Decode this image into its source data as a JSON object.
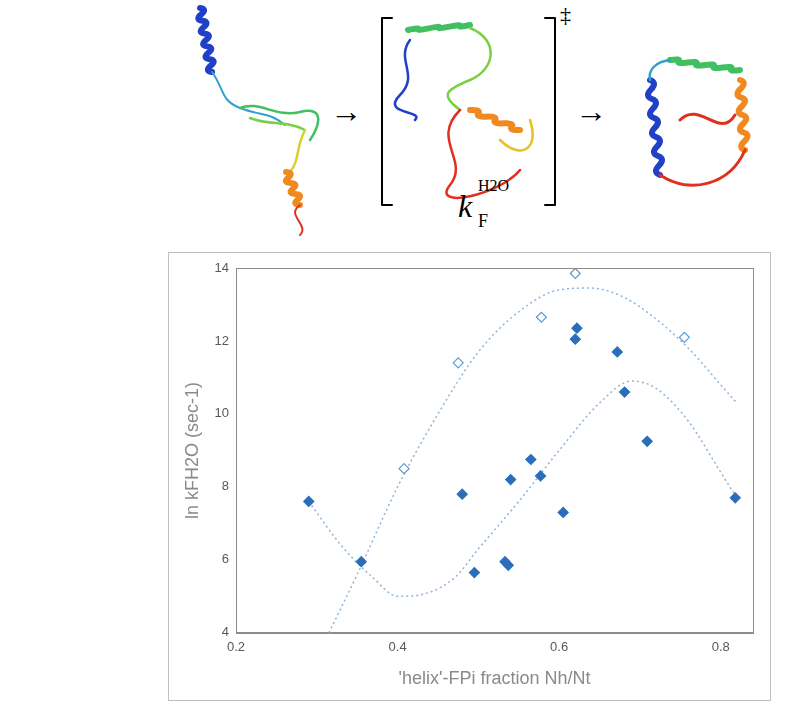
{
  "chart_data": {
    "type": "scatter",
    "scheme": {
      "arrows": [
        "→",
        "→"
      ],
      "transition_state_mark": "‡",
      "rate_symbol": {
        "base": "k",
        "subscript": "F",
        "superscript": "H2O"
      }
    },
    "x_label": "'helix'-FPi fraction Nh/Nt",
    "y_label": "ln kFH2O (sec-1)",
    "xlim": [
      0.2,
      0.84
    ],
    "xticks": [
      0.2,
      0.4,
      0.6,
      0.8
    ],
    "ylim": [
      4,
      14
    ],
    "yticks": [
      4,
      6,
      8,
      10,
      12,
      14
    ],
    "grid": false,
    "series": [
      {
        "color": "#2a6ebb",
        "marker": "diamond",
        "line_style": "none",
        "x": [
          0.29,
          0.355,
          0.48,
          0.495,
          0.533,
          0.537,
          0.54,
          0.565,
          0.577,
          0.605,
          0.62,
          0.622,
          0.672,
          0.681,
          0.709,
          0.818
        ],
        "values": [
          7.6,
          5.95,
          7.8,
          5.65,
          5.95,
          5.85,
          8.2,
          8.75,
          8.3,
          7.3,
          12.05,
          12.35,
          11.7,
          10.6,
          9.25,
          7.7
        ]
      },
      {
        "color": "#5b9bd5",
        "marker": "open_diamond",
        "line_style": "none",
        "x": [
          0.408,
          0.475,
          0.578,
          0.62,
          0.755
        ],
        "values": [
          8.5,
          11.4,
          12.65,
          13.85,
          12.1
        ]
      },
      {
        "color": "#8fb4d9",
        "marker": "none",
        "line_style": "dotted",
        "x": [
          0.29,
          0.33,
          0.37,
          0.4,
          0.43,
          0.47,
          0.5,
          0.55,
          0.6,
          0.65,
          0.69,
          0.72,
          0.76,
          0.8,
          0.82
        ],
        "values": [
          7.6,
          6.4,
          5.5,
          5.0,
          5.05,
          5.5,
          6.3,
          7.6,
          9.0,
          10.3,
          10.9,
          10.7,
          9.8,
          8.4,
          7.7
        ]
      },
      {
        "color": "#8fb4d9",
        "marker": "none",
        "line_style": "dotted",
        "x": [
          0.315,
          0.35,
          0.4,
          0.45,
          0.5,
          0.55,
          0.6,
          0.64,
          0.68,
          0.72,
          0.76,
          0.8,
          0.82
        ],
        "values": [
          4.0,
          5.6,
          8.0,
          10.0,
          11.7,
          12.8,
          13.4,
          13.45,
          13.2,
          12.6,
          11.8,
          10.8,
          10.3
        ]
      }
    ]
  }
}
